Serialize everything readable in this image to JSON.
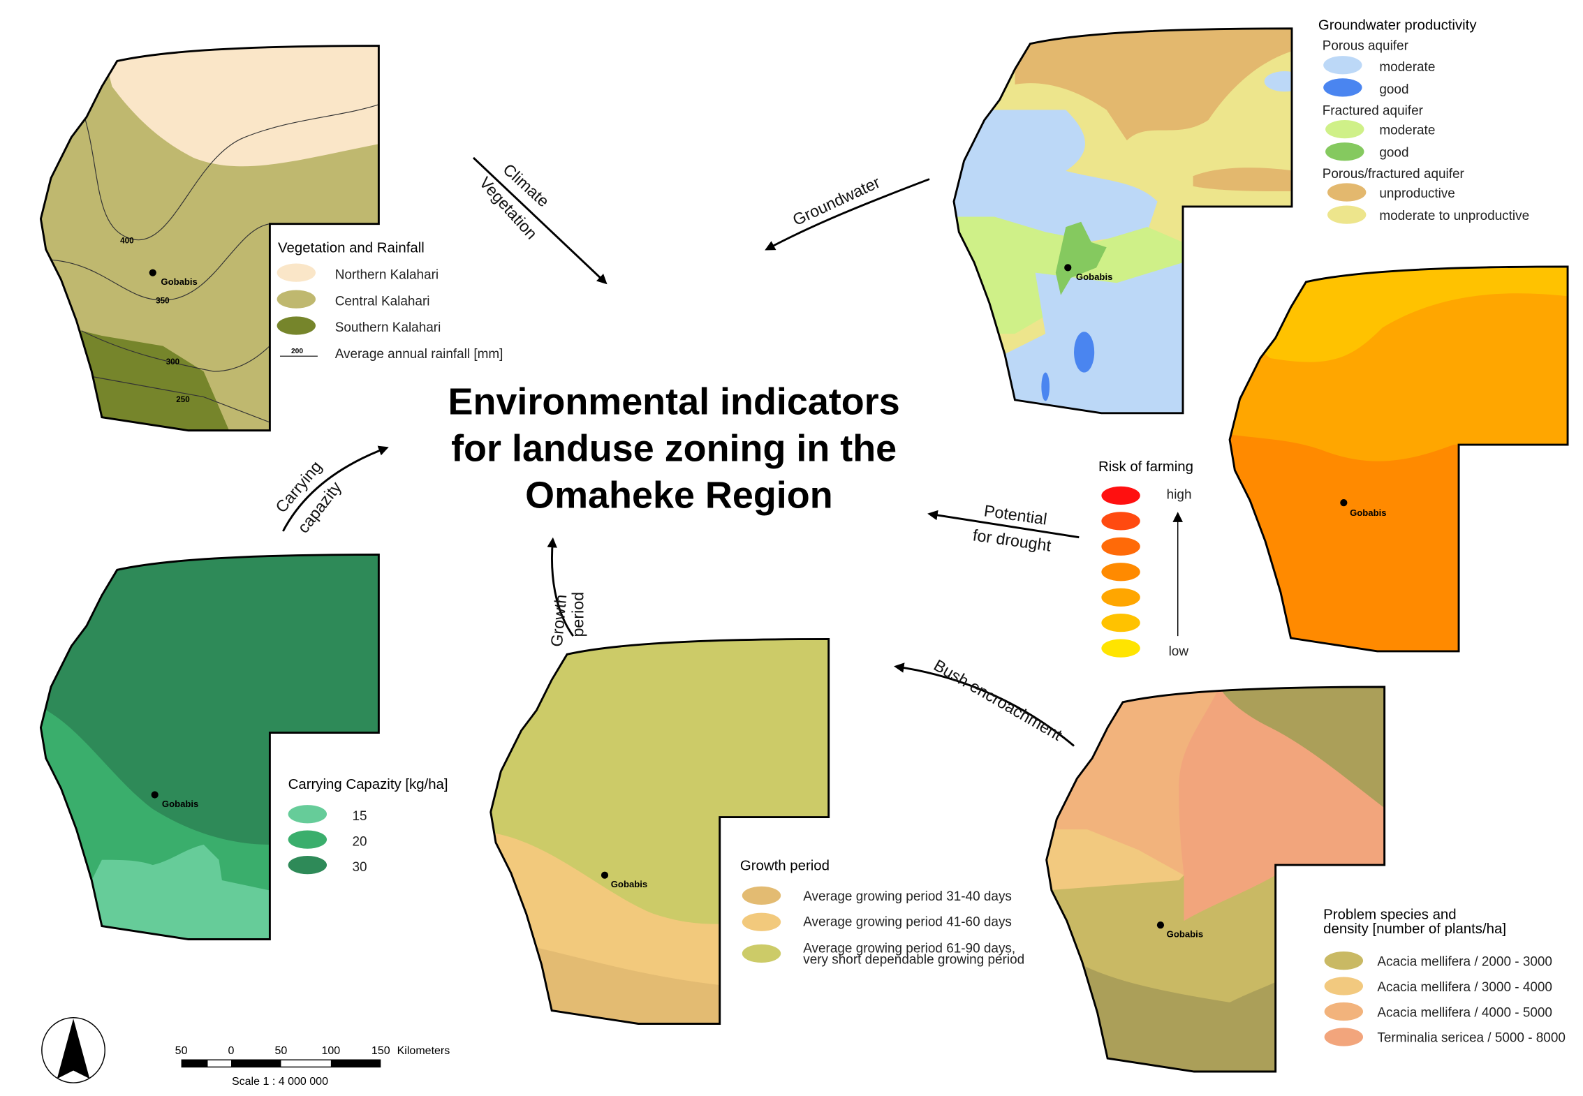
{
  "title": {
    "line1": "Environmental indicators",
    "line2": "for landuse zoning in the",
    "line3": "Omaheke Region"
  },
  "town": "Gobabis",
  "vegetation": {
    "title": "Vegetation and Rainfall",
    "items": [
      {
        "label": "Northern Kalahari",
        "color": "#fae6c8"
      },
      {
        "label": "Central Kalahari",
        "color": "#bfb86f"
      },
      {
        "label": "Southern Kalahari",
        "color": "#76852b"
      }
    ],
    "isoline_sample": "200",
    "isoline_label": "Average annual rainfall [mm]",
    "isolines": [
      "400",
      "350",
      "300",
      "250"
    ]
  },
  "groundwater": {
    "title": "Groundwater productivity",
    "groups": [
      {
        "label": "Porous aquifer",
        "items": [
          {
            "label": "moderate",
            "color": "#bcd8f7"
          },
          {
            "label": "good",
            "color": "#4a85f0"
          }
        ]
      },
      {
        "label": "Fractured aquifer",
        "items": [
          {
            "label": "moderate",
            "color": "#cff088"
          },
          {
            "label": "good",
            "color": "#85c95f"
          }
        ]
      },
      {
        "label": "Porous/fractured aquifer",
        "items": [
          {
            "label": "unproductive",
            "color": "#e3b86e"
          },
          {
            "label": "moderate to unproductive",
            "color": "#ede58c"
          }
        ]
      }
    ]
  },
  "risk": {
    "title": "Risk of farming",
    "high": "high",
    "low": "low",
    "colors": [
      "#ff1010",
      "#ff4a10",
      "#ff6a08",
      "#ff8a00",
      "#ffa600",
      "#ffc200",
      "#ffe400"
    ]
  },
  "carrying": {
    "title": "Carrying Capazity [kg/ha]",
    "items": [
      {
        "label": "15",
        "color": "#66cc99"
      },
      {
        "label": "20",
        "color": "#3aae6c"
      },
      {
        "label": "30",
        "color": "#2e8a58"
      }
    ]
  },
  "growth": {
    "title": "Growth period",
    "items": [
      {
        "label": "Average growing period 31-40 days",
        "color": "#e3bb72"
      },
      {
        "label": "Average growing period 41-60 days",
        "color": "#f2c97c"
      },
      {
        "label": "Average growing period 61-90 days,",
        "label2": "very short dependable growing period",
        "color": "#cccb68"
      }
    ]
  },
  "bush": {
    "title1": "Problem species and",
    "title2": "density [number of plants/ha]",
    "items": [
      {
        "label": "Acacia mellifera / 2000 - 3000",
        "color": "#c9b964"
      },
      {
        "label": "Acacia mellifera / 3000 - 4000",
        "color": "#f2c97f"
      },
      {
        "label": "Acacia mellifera / 4000 - 5000",
        "color": "#f2b37c"
      },
      {
        "label": "Terminalia sericea / 5000 - 8000",
        "color": "#f2a57c"
      }
    ]
  },
  "arrows": {
    "climate1": "Climate",
    "climate2": "Vegetation",
    "groundwater": "Groundwater",
    "carrying1": "Carrying",
    "carrying2": "capazity",
    "growth1": "Growth",
    "growth2": "period",
    "drought1": "Potential",
    "drought2": "for drought",
    "bush": "Bush encroachment"
  },
  "scalebar": {
    "ticks": [
      "50",
      "0",
      "50",
      "100",
      "150"
    ],
    "unit": "Kilometers",
    "scale": "Scale 1 : 4 000 000"
  }
}
